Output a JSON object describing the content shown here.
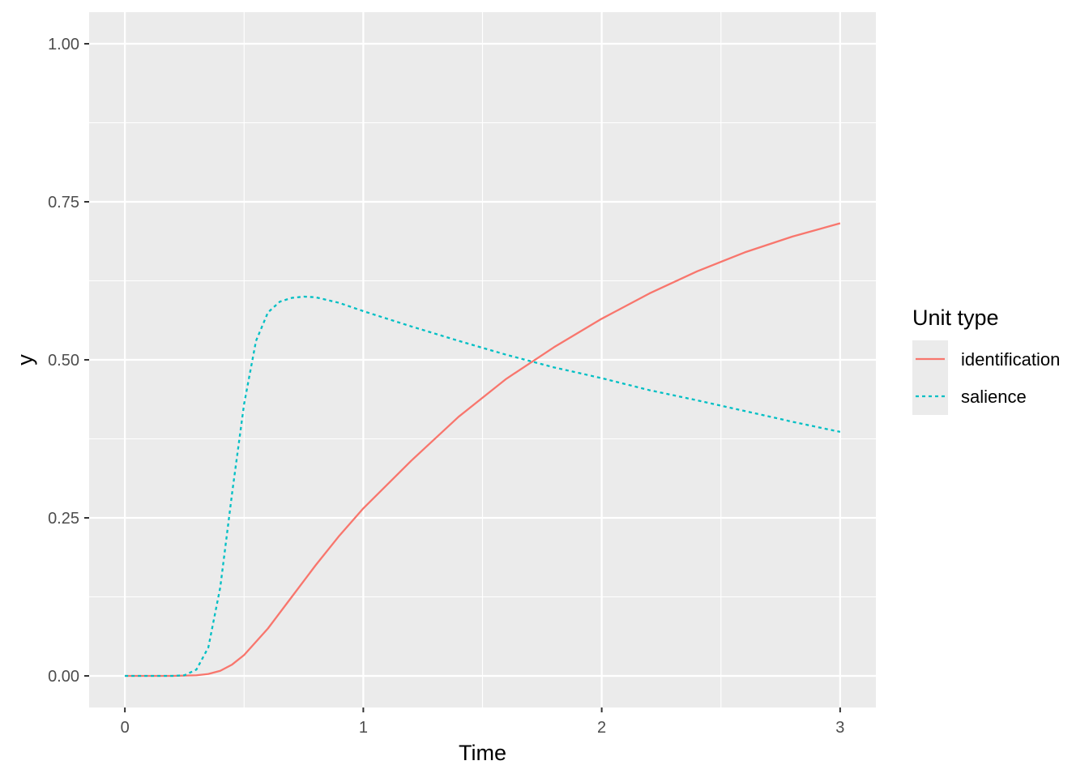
{
  "chart_data": {
    "type": "line",
    "xlabel": "Time",
    "ylabel": "y",
    "xlim": [
      -0.15,
      3.15
    ],
    "ylim": [
      -0.05,
      1.05
    ],
    "x_ticks": [
      0,
      1,
      2,
      3
    ],
    "x_tick_labels": [
      "0",
      "1",
      "2",
      "3"
    ],
    "x_minor_ticks": [
      0.5,
      1.5,
      2.5
    ],
    "y_ticks": [
      0,
      0.25,
      0.5,
      0.75,
      1.0
    ],
    "y_tick_labels": [
      "0.00",
      "0.25",
      "0.50",
      "0.75",
      "1.00"
    ],
    "y_minor_ticks": [
      0.125,
      0.375,
      0.625,
      0.875
    ],
    "grid": true,
    "panel_background": "#ebebeb",
    "legend": {
      "title": "Unit type",
      "position": "right",
      "entries": [
        "identification",
        "salience"
      ]
    },
    "series": [
      {
        "name": "identification",
        "color": "#f8766d",
        "linetype": "solid",
        "x": [
          0,
          0.1,
          0.2,
          0.3,
          0.35,
          0.4,
          0.45,
          0.5,
          0.6,
          0.7,
          0.8,
          0.9,
          1.0,
          1.2,
          1.4,
          1.6,
          1.8,
          2.0,
          2.2,
          2.4,
          2.6,
          2.8,
          3.0
        ],
        "y": [
          0,
          0,
          0,
          0.001,
          0.003,
          0.008,
          0.018,
          0.033,
          0.075,
          0.125,
          0.175,
          0.222,
          0.265,
          0.34,
          0.41,
          0.47,
          0.52,
          0.565,
          0.605,
          0.64,
          0.67,
          0.695,
          0.716
        ]
      },
      {
        "name": "salience",
        "color": "#00bfc4",
        "linetype": "dashed",
        "x": [
          0,
          0.1,
          0.2,
          0.25,
          0.3,
          0.35,
          0.4,
          0.45,
          0.5,
          0.55,
          0.6,
          0.65,
          0.7,
          0.75,
          0.8,
          0.9,
          1.0,
          1.2,
          1.4,
          1.6,
          1.8,
          2.0,
          2.2,
          2.4,
          2.6,
          2.8,
          3.0
        ],
        "y": [
          0,
          0,
          0,
          0.001,
          0.01,
          0.045,
          0.14,
          0.29,
          0.43,
          0.53,
          0.575,
          0.592,
          0.598,
          0.6,
          0.599,
          0.59,
          0.577,
          0.553,
          0.53,
          0.508,
          0.488,
          0.471,
          0.452,
          0.436,
          0.419,
          0.402,
          0.386
        ]
      }
    ]
  }
}
